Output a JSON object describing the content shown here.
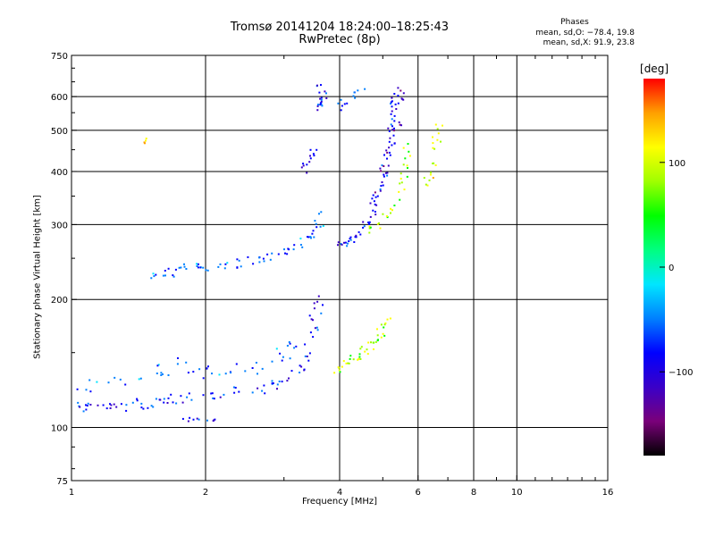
{
  "header": {
    "title": "Tromsø 20141204 18:24:00–18:25:43",
    "subtitle": "RwPretec (8p)"
  },
  "phases": {
    "heading": "Phases",
    "o_line": "mean, sd,O: −78.4, 19.8",
    "x_line": "mean, sd,X:  91.9, 23.8"
  },
  "colorbar": {
    "unit": "deg",
    "ticks": [
      {
        "value": 100,
        "label": "100"
      },
      {
        "value": 0,
        "label": "0"
      },
      {
        "value": -100,
        "label": "−100"
      }
    ],
    "range": [
      -180,
      180
    ],
    "colormap": [
      "#000000",
      "#7a007a",
      "#3a00c8",
      "#0000ff",
      "#0080ff",
      "#00e6ff",
      "#00ff80",
      "#00ff00",
      "#a0ff00",
      "#ffff00",
      "#ffa000",
      "#ff0000"
    ]
  },
  "chart_data": {
    "type": "scatter",
    "title": "Tromsø 20141204 18:24:00–18:25:43",
    "subtitle": "RwPretec (8p)",
    "xlabel": "Frequency [MHz]",
    "ylabel": "Stationary phase Virtual Height [km]",
    "x_scale": "log",
    "y_scale": "log",
    "xlim": [
      1,
      16
    ],
    "ylim": [
      75,
      750
    ],
    "xticks": [
      1,
      2,
      4,
      6,
      8,
      10,
      16
    ],
    "yticks": [
      75,
      100,
      200,
      300,
      400,
      500,
      600,
      750
    ],
    "grid": true,
    "color_variable": "phase [deg]",
    "series": [
      {
        "name": "O",
        "phase_mean": -78.4,
        "phase_sd": 19.8
      },
      {
        "name": "X",
        "phase_mean": 91.9,
        "phase_sd": 23.8
      }
    ],
    "traces": [
      {
        "mode": "O",
        "pts": [
          [
            1.0,
            112
          ],
          [
            1.08,
            111
          ],
          [
            1.15,
            111
          ],
          [
            1.25,
            112
          ],
          [
            1.35,
            113
          ],
          [
            1.45,
            114
          ],
          [
            1.55,
            115
          ],
          [
            1.65,
            116
          ],
          [
            1.8,
            117
          ],
          [
            2.0,
            118
          ],
          [
            2.2,
            120
          ],
          [
            2.45,
            122
          ],
          [
            2.7,
            124
          ],
          [
            2.95,
            127
          ],
          [
            3.15,
            133
          ],
          [
            3.3,
            140
          ],
          [
            3.4,
            150
          ],
          [
            3.5,
            170
          ],
          [
            3.55,
            190
          ],
          [
            3.6,
            210
          ]
        ],
        "phase_mean": -80,
        "spread": 0.06,
        "n": 5
      },
      {
        "mode": "O",
        "pts": [
          [
            1.05,
            125
          ],
          [
            1.2,
            128
          ],
          [
            1.4,
            132
          ],
          [
            1.6,
            136
          ],
          [
            1.8,
            140
          ],
          [
            2.0,
            132
          ],
          [
            2.2,
            135
          ],
          [
            2.5,
            138
          ],
          [
            2.8,
            142
          ],
          [
            3.1,
            150
          ],
          [
            3.3,
            160
          ]
        ],
        "phase_mean": -60,
        "spread": 0.09,
        "n": 5
      },
      {
        "mode": "O",
        "pts": [
          [
            1.75,
            105
          ],
          [
            1.9,
            104
          ],
          [
            2.1,
            104
          ]
        ],
        "phase_mean": -90,
        "spread": 0.02,
        "n": 5
      },
      {
        "mode": "O",
        "pts": [
          [
            1.5,
            225
          ],
          [
            1.6,
            228
          ],
          [
            1.7,
            232
          ],
          [
            1.8,
            236
          ],
          [
            1.95,
            238
          ],
          [
            2.1,
            240
          ],
          [
            2.3,
            243
          ],
          [
            2.5,
            247
          ],
          [
            2.7,
            250
          ],
          [
            2.9,
            255
          ],
          [
            3.1,
            262
          ],
          [
            3.3,
            272
          ],
          [
            3.45,
            285
          ],
          [
            3.6,
            300
          ],
          [
            3.7,
            325
          ]
        ],
        "phase_mean": -55,
        "spread": 0.05,
        "n": 5
      },
      {
        "mode": "O",
        "pts": [
          [
            3.9,
            265
          ],
          [
            4.1,
            270
          ],
          [
            4.3,
            278
          ],
          [
            4.5,
            290
          ],
          [
            4.7,
            310
          ],
          [
            4.85,
            340
          ],
          [
            5.0,
            380
          ],
          [
            5.1,
            430
          ],
          [
            5.2,
            480
          ],
          [
            5.25,
            530
          ],
          [
            5.3,
            580
          ],
          [
            5.35,
            630
          ]
        ],
        "phase_mean": -90,
        "spread": 0.04,
        "n": 6
      },
      {
        "mode": "O",
        "pts": [
          [
            4.7,
            330
          ],
          [
            4.9,
            370
          ],
          [
            5.1,
            420
          ],
          [
            5.25,
            470
          ],
          [
            5.4,
            520
          ],
          [
            5.5,
            580
          ],
          [
            5.6,
            630
          ]
        ],
        "phase_mean": -100,
        "spread": 0.04,
        "n": 5
      },
      {
        "mode": "O",
        "pts": [
          [
            3.5,
            560
          ],
          [
            3.6,
            580
          ],
          [
            3.7,
            600
          ],
          [
            3.6,
            640
          ]
        ],
        "phase_mean": -80,
        "spread": 0.04,
        "n": 6
      },
      {
        "mode": "O",
        "pts": [
          [
            3.35,
            390
          ],
          [
            3.4,
            420
          ],
          [
            3.5,
            450
          ]
        ],
        "phase_mean": -95,
        "spread": 0.05,
        "n": 6
      },
      {
        "mode": "O",
        "pts": [
          [
            3.9,
            560
          ],
          [
            4.1,
            580
          ],
          [
            4.3,
            600
          ],
          [
            4.5,
            620
          ]
        ],
        "phase_mean": -70,
        "spread": 0.04,
        "n": 4
      },
      {
        "mode": "X",
        "pts": [
          [
            3.9,
            135
          ],
          [
            4.1,
            140
          ],
          [
            4.3,
            145
          ],
          [
            4.5,
            150
          ],
          [
            4.7,
            155
          ],
          [
            4.9,
            160
          ],
          [
            5.0,
            170
          ],
          [
            5.1,
            180
          ]
        ],
        "phase_mean": 95,
        "spread": 0.05,
        "n": 6
      },
      {
        "mode": "X",
        "pts": [
          [
            4.6,
            290
          ],
          [
            4.9,
            300
          ],
          [
            5.2,
            320
          ],
          [
            5.4,
            345
          ],
          [
            5.55,
            380
          ],
          [
            5.65,
            420
          ],
          [
            5.7,
            470
          ]
        ],
        "phase_mean": 90,
        "spread": 0.04,
        "n": 5
      },
      {
        "mode": "X",
        "pts": [
          [
            6.2,
            360
          ],
          [
            6.4,
            400
          ],
          [
            6.5,
            440
          ],
          [
            6.6,
            480
          ],
          [
            6.7,
            520
          ]
        ],
        "phase_mean": 100,
        "spread": 0.05,
        "n": 5
      },
      {
        "mode": "X",
        "pts": [
          [
            1.45,
            460
          ],
          [
            1.48,
            490
          ]
        ],
        "phase_mean": 130,
        "spread": 0.02,
        "n": 4
      }
    ]
  }
}
